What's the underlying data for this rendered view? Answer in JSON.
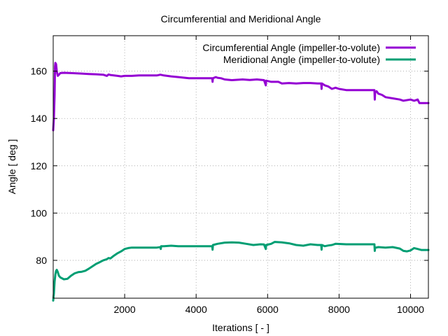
{
  "chart_data": {
    "type": "line",
    "title": "Circumferential and Meridional Angle",
    "xlabel": "Iterations [ - ]",
    "ylabel": "Angle [ deg ]",
    "xlim": [
      0,
      10500
    ],
    "ylim": [
      64,
      175
    ],
    "xticks": [
      2000,
      4000,
      6000,
      8000,
      10000
    ],
    "yticks": [
      80,
      100,
      120,
      140,
      160
    ],
    "grid": true,
    "legend_position": "top-right",
    "series": [
      {
        "name": "Circumferential Angle (impeller-to-volute)",
        "color": "#9400d3",
        "points": [
          [
            0,
            135
          ],
          [
            20,
            140
          ],
          [
            40,
            150
          ],
          [
            50,
            162
          ],
          [
            60,
            163.5
          ],
          [
            80,
            163
          ],
          [
            100,
            160
          ],
          [
            130,
            158
          ],
          [
            160,
            158.5
          ],
          [
            200,
            159.2
          ],
          [
            300,
            159.3
          ],
          [
            500,
            159.2
          ],
          [
            800,
            159
          ],
          [
            1000,
            158.8
          ],
          [
            1200,
            158.7
          ],
          [
            1400,
            158.5
          ],
          [
            1500,
            158
          ],
          [
            1550,
            158.6
          ],
          [
            1600,
            158.4
          ],
          [
            1800,
            158
          ],
          [
            1900,
            157.8
          ],
          [
            2000,
            158
          ],
          [
            2200,
            158
          ],
          [
            2400,
            158.2
          ],
          [
            2600,
            158.2
          ],
          [
            2900,
            158.2
          ],
          [
            3000,
            158.5
          ],
          [
            3100,
            158.2
          ],
          [
            3300,
            157.8
          ],
          [
            3500,
            157.5
          ],
          [
            3800,
            157
          ],
          [
            4000,
            157
          ],
          [
            4300,
            157
          ],
          [
            4450,
            157
          ],
          [
            4460,
            155.5
          ],
          [
            4470,
            157
          ],
          [
            4550,
            157.5
          ],
          [
            4600,
            157.2
          ],
          [
            4700,
            157
          ],
          [
            4800,
            156.5
          ],
          [
            5000,
            156.2
          ],
          [
            5300,
            156.5
          ],
          [
            5500,
            156.3
          ],
          [
            5700,
            156.5
          ],
          [
            5900,
            156.2
          ],
          [
            5950,
            154
          ],
          [
            5960,
            156
          ],
          [
            6100,
            155.5
          ],
          [
            6300,
            155.5
          ],
          [
            6400,
            154.8
          ],
          [
            6600,
            155
          ],
          [
            6800,
            154.8
          ],
          [
            7000,
            155
          ],
          [
            7200,
            155
          ],
          [
            7400,
            154.8
          ],
          [
            7500,
            154.8
          ],
          [
            7510,
            152.5
          ],
          [
            7520,
            154.8
          ],
          [
            7600,
            154
          ],
          [
            7700,
            153.5
          ],
          [
            7800,
            152.5
          ],
          [
            7900,
            153
          ],
          [
            8000,
            152.5
          ],
          [
            8200,
            152
          ],
          [
            8500,
            152
          ],
          [
            8800,
            152
          ],
          [
            8990,
            152
          ],
          [
            9000,
            148
          ],
          [
            9010,
            151
          ],
          [
            9050,
            151.5
          ],
          [
            9100,
            150.5
          ],
          [
            9200,
            150
          ],
          [
            9300,
            149
          ],
          [
            9500,
            148.5
          ],
          [
            9700,
            148
          ],
          [
            9800,
            147.5
          ],
          [
            10000,
            148
          ],
          [
            10100,
            147.5
          ],
          [
            10200,
            148
          ],
          [
            10250,
            146.5
          ],
          [
            10300,
            146.5
          ],
          [
            10500,
            146.5
          ]
        ]
      },
      {
        "name": "Meridional Angle (impeller-to-volute)",
        "color": "#009e73",
        "points": [
          [
            0,
            63
          ],
          [
            20,
            66
          ],
          [
            40,
            71
          ],
          [
            60,
            74
          ],
          [
            80,
            75.5
          ],
          [
            100,
            76
          ],
          [
            130,
            75
          ],
          [
            160,
            73.5
          ],
          [
            200,
            72.8
          ],
          [
            300,
            72
          ],
          [
            400,
            72.2
          ],
          [
            500,
            73.5
          ],
          [
            600,
            74.5
          ],
          [
            700,
            75
          ],
          [
            800,
            75.2
          ],
          [
            900,
            75.6
          ],
          [
            1000,
            76.5
          ],
          [
            1100,
            77.5
          ],
          [
            1200,
            78.5
          ],
          [
            1300,
            79.2
          ],
          [
            1400,
            80
          ],
          [
            1500,
            80.5
          ],
          [
            1550,
            81
          ],
          [
            1600,
            80.8
          ],
          [
            1700,
            82
          ],
          [
            1800,
            83
          ],
          [
            1900,
            83.8
          ],
          [
            2000,
            84.8
          ],
          [
            2100,
            85.2
          ],
          [
            2200,
            85.4
          ],
          [
            2400,
            85.4
          ],
          [
            2600,
            85.4
          ],
          [
            2900,
            85.4
          ],
          [
            3000,
            85.6
          ],
          [
            3010,
            84.8
          ],
          [
            3020,
            86
          ],
          [
            3100,
            86
          ],
          [
            3300,
            86.2
          ],
          [
            3500,
            86
          ],
          [
            3700,
            86
          ],
          [
            4000,
            86
          ],
          [
            4300,
            86
          ],
          [
            4450,
            86
          ],
          [
            4460,
            84.5
          ],
          [
            4470,
            86.5
          ],
          [
            4600,
            87
          ],
          [
            4800,
            87.5
          ],
          [
            5000,
            87.6
          ],
          [
            5200,
            87.5
          ],
          [
            5400,
            87
          ],
          [
            5600,
            86.5
          ],
          [
            5800,
            86.8
          ],
          [
            5900,
            86.7
          ],
          [
            5950,
            84.8
          ],
          [
            5960,
            86.5
          ],
          [
            6100,
            87
          ],
          [
            6200,
            87.8
          ],
          [
            6400,
            87.6
          ],
          [
            6600,
            87.2
          ],
          [
            6800,
            86.5
          ],
          [
            7000,
            86.2
          ],
          [
            7200,
            86.8
          ],
          [
            7400,
            86.5
          ],
          [
            7500,
            86.5
          ],
          [
            7510,
            84.5
          ],
          [
            7520,
            86.5
          ],
          [
            7600,
            86
          ],
          [
            7700,
            86.3
          ],
          [
            7800,
            86.5
          ],
          [
            7900,
            87
          ],
          [
            8200,
            86.8
          ],
          [
            8500,
            86.8
          ],
          [
            8800,
            86.8
          ],
          [
            8990,
            86.8
          ],
          [
            9000,
            84
          ],
          [
            9010,
            85.3
          ],
          [
            9100,
            85.6
          ],
          [
            9300,
            85.4
          ],
          [
            9500,
            85.6
          ],
          [
            9700,
            85
          ],
          [
            9800,
            84
          ],
          [
            9900,
            83.8
          ],
          [
            10000,
            84.2
          ],
          [
            10100,
            85.2
          ],
          [
            10200,
            84.8
          ],
          [
            10300,
            84.4
          ],
          [
            10500,
            84.4
          ]
        ]
      }
    ]
  }
}
